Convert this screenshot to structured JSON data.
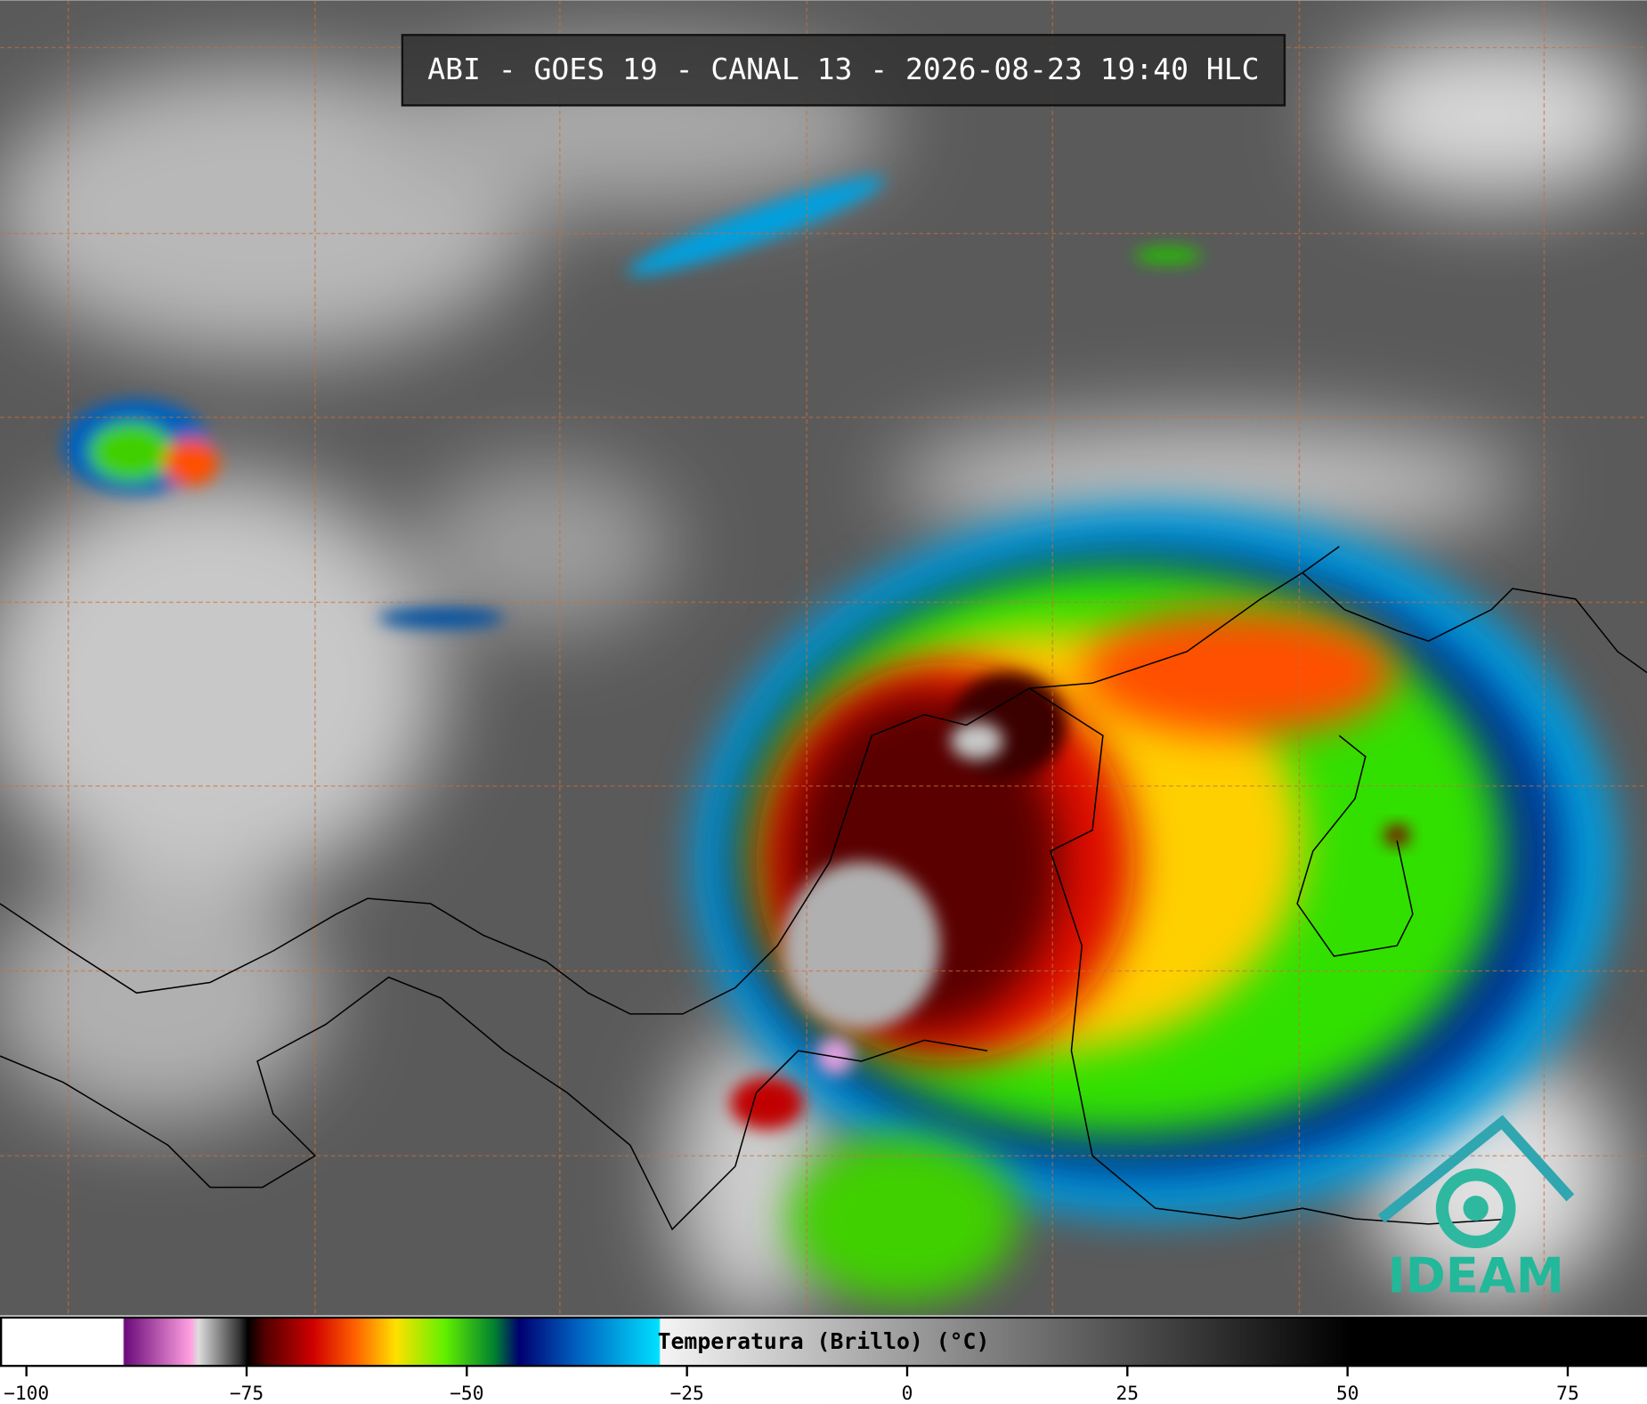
{
  "title": "ABI - GOES 19 - CANAL 13 - 2026-08-23 19:40 HLC",
  "colorbar": {
    "label": "Temperatura (Brillo) (°C)",
    "xlim": [
      -103,
      84
    ],
    "xticks": [
      {
        "value": -100,
        "label": "−100"
      },
      {
        "value": -75,
        "label": "−75"
      },
      {
        "value": -50,
        "label": "−50"
      },
      {
        "value": -25,
        "label": "−25"
      },
      0,
      25,
      50,
      75
    ]
  },
  "logo": "IDEAM"
}
